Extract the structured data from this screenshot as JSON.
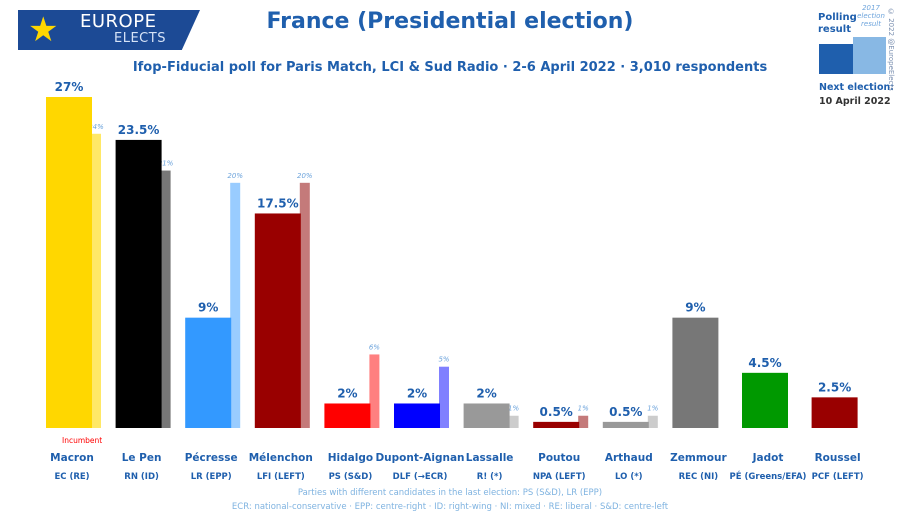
{
  "header": {
    "logo_line1": "EUROPE",
    "logo_line2": "ELECTS",
    "title": "France (Presidential election)",
    "subtitle": "Ifop-Fiducial poll for Paris Match, LCI & Sud Radio · 2-6 April 2022 · 3,010 respondents"
  },
  "legend": {
    "polling_label": "Polling result",
    "prev_label": "2017 election result",
    "next_election_label": "Next election:",
    "next_election_date": "10 April 2022"
  },
  "copyright": "© 2022 @EuropeElects",
  "footnotes": [
    "Parties with different candidates in the last election: PS (S&D), LR (EPP)",
    "ECR: national-conservative · EPP: centre-right · ID: right-wing · NI: mixed · RE: liberal · S&D: centre-left"
  ],
  "chart_data": {
    "type": "bar",
    "title": "France (Presidential election)",
    "ylim": [
      0,
      28
    ],
    "categories": [
      "Macron",
      "Le Pen",
      "Pécresse",
      "Mélenchon",
      "Hidalgo",
      "Dupont-Aignan",
      "Lassalle",
      "Poutou",
      "Arthaud",
      "Zemmour",
      "Jadot",
      "Roussel"
    ],
    "parties": [
      "EC (RE)",
      "RN (ID)",
      "LR (EPP)",
      "LFI (LEFT)",
      "PS (S&D)",
      "DLF (→ECR)",
      "R! (*)",
      "NPA (LEFT)",
      "LO (*)",
      "REC (NI)",
      "PÉ (Greens/EFA)",
      "PCF (LEFT)"
    ],
    "annotations": [
      {
        "category": "Macron",
        "text": "Incumbent"
      }
    ],
    "colors": [
      "#ffd700",
      "#000000",
      "#3399ff",
      "#990000",
      "#ff0000",
      "#0000ff",
      "#999999",
      "#990000",
      "#999999",
      "#777777",
      "#009900",
      "#990000"
    ],
    "prev_colors": [
      "#ffe866",
      "#777777",
      "#99ccff",
      "#c47a7a",
      "#ff8080",
      "#8080ff",
      "#cccccc",
      "#c47a7a",
      "#cccccc",
      null,
      null,
      null
    ],
    "series": [
      {
        "name": "Polling result",
        "values": [
          27,
          23.5,
          9,
          17.5,
          2,
          2,
          2,
          0.5,
          0.5,
          9,
          4.5,
          2.5
        ],
        "labels": [
          "27%",
          "23.5%",
          "9%",
          "17.5%",
          "2%",
          "2%",
          "2%",
          "0.5%",
          "0.5%",
          "9%",
          "4.5%",
          "2.5%"
        ]
      },
      {
        "name": "2017 election result",
        "values": [
          24,
          21,
          20,
          20,
          6,
          5,
          1,
          1,
          1,
          null,
          null,
          null
        ],
        "labels": [
          "24%",
          "21%",
          "20%",
          "20%",
          "6%",
          "5%",
          "1%",
          "1%",
          "1%",
          null,
          null,
          null
        ]
      }
    ]
  }
}
